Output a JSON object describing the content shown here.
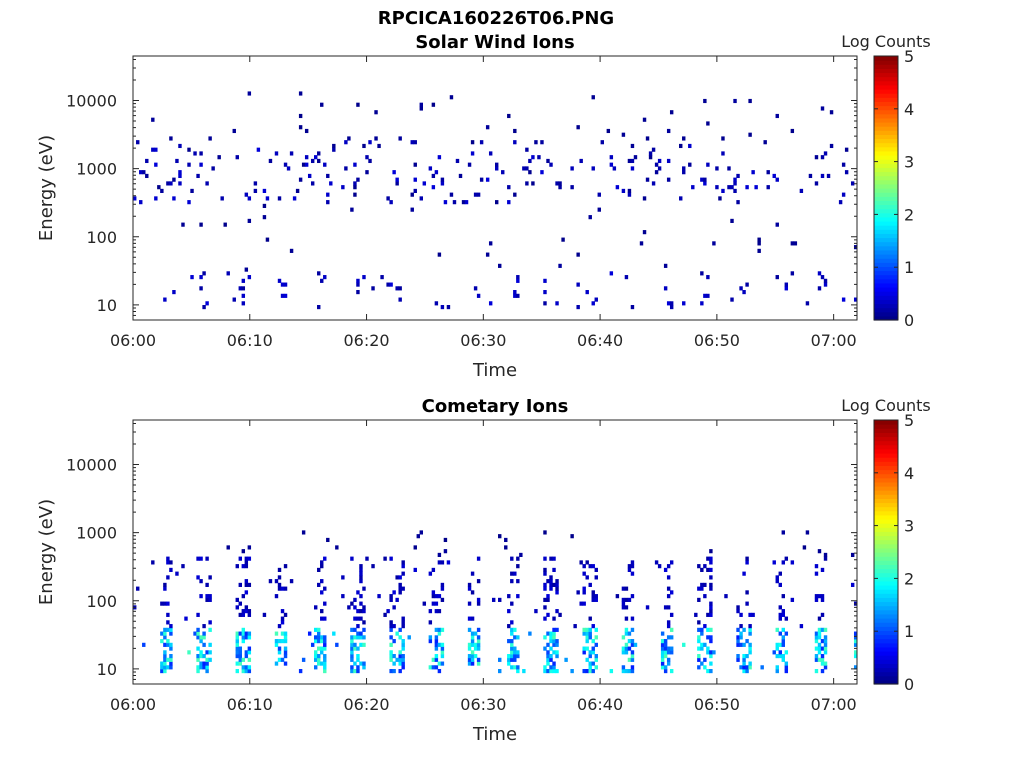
{
  "figure": {
    "title": "RPCICA160226T06.PNG"
  },
  "colorbar": {
    "label": "Log Counts",
    "ticks": [
      "0",
      "1",
      "2",
      "3",
      "4",
      "5"
    ],
    "range": [
      0,
      5
    ],
    "colormap": "jet"
  },
  "chart_data": [
    {
      "type": "heatmap",
      "title": "Solar Wind Ions",
      "xlabel": "Time",
      "ylabel": "Energy (eV)",
      "xlim": [
        "06:00",
        "07:02"
      ],
      "ylim": [
        6,
        45000
      ],
      "yscale": "log",
      "x_ticks": [
        "06:00",
        "06:10",
        "06:20",
        "06:30",
        "06:40",
        "06:50",
        "07:00"
      ],
      "y_ticks": [
        "10",
        "100",
        "1000",
        "10000"
      ],
      "colorbar_label": "Log Counts",
      "clim": [
        0,
        5
      ],
      "description_bands": [
        {
          "energy_range_eV": [
            8,
            30
          ],
          "log_counts": 0.3,
          "pattern": "sparse pulses"
        },
        {
          "energy_range_eV": [
            300,
            2500
          ],
          "log_counts": 0.3,
          "pattern": "scattered"
        },
        {
          "energy_range_eV": [
            30,
            12000
          ],
          "log_counts": 0.1,
          "pattern": "isolated pixels"
        }
      ],
      "grid": false
    },
    {
      "type": "heatmap",
      "title": "Cometary Ions",
      "xlabel": "Time",
      "ylabel": "Energy (eV)",
      "xlim": [
        "06:00",
        "07:02"
      ],
      "ylim": [
        6,
        45000
      ],
      "yscale": "log",
      "x_ticks": [
        "06:00",
        "06:10",
        "06:20",
        "06:30",
        "06:40",
        "06:50",
        "07:00"
      ],
      "y_ticks": [
        "10",
        "100",
        "1000",
        "10000"
      ],
      "colorbar_label": "Log Counts",
      "clim": [
        0,
        5
      ],
      "pulse_period_min": 3.3,
      "description_bands": [
        {
          "energy_range_eV": [
            8,
            40
          ],
          "log_counts": 1.5,
          "pattern": "periodic pulses"
        },
        {
          "energy_range_eV": [
            40,
            400
          ],
          "log_counts": 0.3,
          "pattern": "periodic fringes"
        },
        {
          "energy_range_eV": [
            400,
            1000
          ],
          "log_counts": 0.1,
          "pattern": "isolated pixels"
        }
      ],
      "grid": false
    }
  ]
}
